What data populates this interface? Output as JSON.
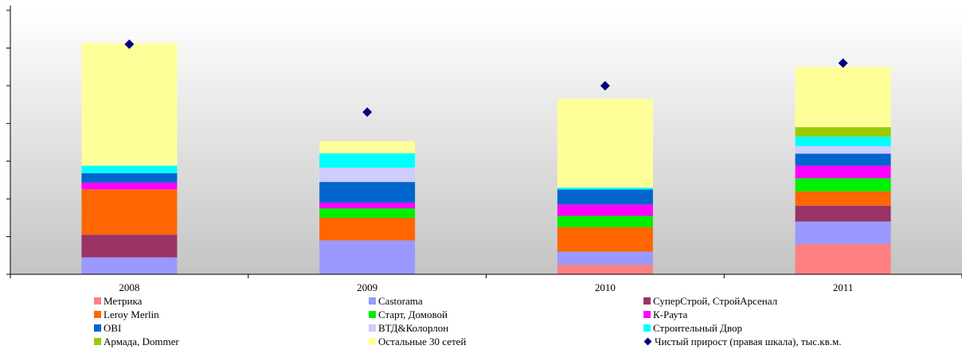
{
  "title": "",
  "chart_data": {
    "type": "bar",
    "stacked": true,
    "categories": [
      "2008",
      "2009",
      "2010",
      "2011"
    ],
    "ylim": [
      0,
      7
    ],
    "y2lim": [
      0,
      7
    ],
    "grid": false,
    "legend_position": "bottom",
    "series": [
      {
        "name": "Метрика",
        "color": "#ff8080",
        "values": [
          0,
          0,
          0.25,
          0.8
        ]
      },
      {
        "name": "Castorama",
        "color": "#9999ff",
        "values": [
          0.45,
          0.9,
          0.35,
          0.6
        ]
      },
      {
        "name": "СуперСтрой, СтройАрсенал",
        "color": "#993366",
        "values": [
          0.6,
          0,
          0,
          0.42
        ]
      },
      {
        "name": "Leroy Merlin",
        "color": "#ff6600",
        "values": [
          1.2,
          0.6,
          0.65,
          0.38
        ]
      },
      {
        "name": "Старт, Домовой",
        "color": "#00ee00",
        "values": [
          0,
          0.25,
          0.3,
          0.35
        ]
      },
      {
        "name": "К-Раута",
        "color": "#ff00ff",
        "values": [
          0.18,
          0.15,
          0.3,
          0.33
        ]
      },
      {
        "name": "OBI",
        "color": "#0066cc",
        "values": [
          0.25,
          0.55,
          0.4,
          0.32
        ]
      },
      {
        "name": "ВТД&Колорлон",
        "color": "#ccccff",
        "values": [
          0,
          0.38,
          0,
          0.2
        ]
      },
      {
        "name": "Строительный Двор",
        "color": "#00ffff",
        "values": [
          0.2,
          0.38,
          0.05,
          0.25
        ]
      },
      {
        "name": "Армада, Dommer",
        "color": "#99cc00",
        "values": [
          0,
          0,
          0,
          0.25
        ]
      },
      {
        "name": "Остальные 30 сетей",
        "color": "#ffff99",
        "values": [
          3.25,
          0.32,
          2.35,
          1.6
        ]
      }
    ],
    "line_series": {
      "name": "Чистый прирост (правая шкала), тыс.кв.м.",
      "color": "#000080",
      "axis": "right",
      "marker": "diamond",
      "values": [
        6.1,
        4.3,
        5.0,
        5.6
      ]
    }
  },
  "legend": [
    {
      "label": "Метрика",
      "color": "#ff8080",
      "kind": "square"
    },
    {
      "label": "Castorama",
      "color": "#9999ff",
      "kind": "square"
    },
    {
      "label": "СуперСтрой, СтройАрсенал",
      "color": "#993366",
      "kind": "square"
    },
    {
      "label": "Leroy Merlin",
      "color": "#ff6600",
      "kind": "square"
    },
    {
      "label": "Старт, Домовой",
      "color": "#00ee00",
      "kind": "square"
    },
    {
      "label": "К-Раута",
      "color": "#ff00ff",
      "kind": "square"
    },
    {
      "label": "OBI",
      "color": "#0066cc",
      "kind": "square"
    },
    {
      "label": "ВТД&Колорлон",
      "color": "#ccccff",
      "kind": "square"
    },
    {
      "label": "Строительный Двор",
      "color": "#00ffff",
      "kind": "square"
    },
    {
      "label": "Армада, Dommer",
      "color": "#99cc00",
      "kind": "square"
    },
    {
      "label": "Остальные 30 сетей",
      "color": "#ffff99",
      "kind": "square"
    },
    {
      "label": "Чистый прирост (правая шкала), тыс.кв.м.",
      "color": "#000080",
      "kind": "diamond"
    }
  ]
}
